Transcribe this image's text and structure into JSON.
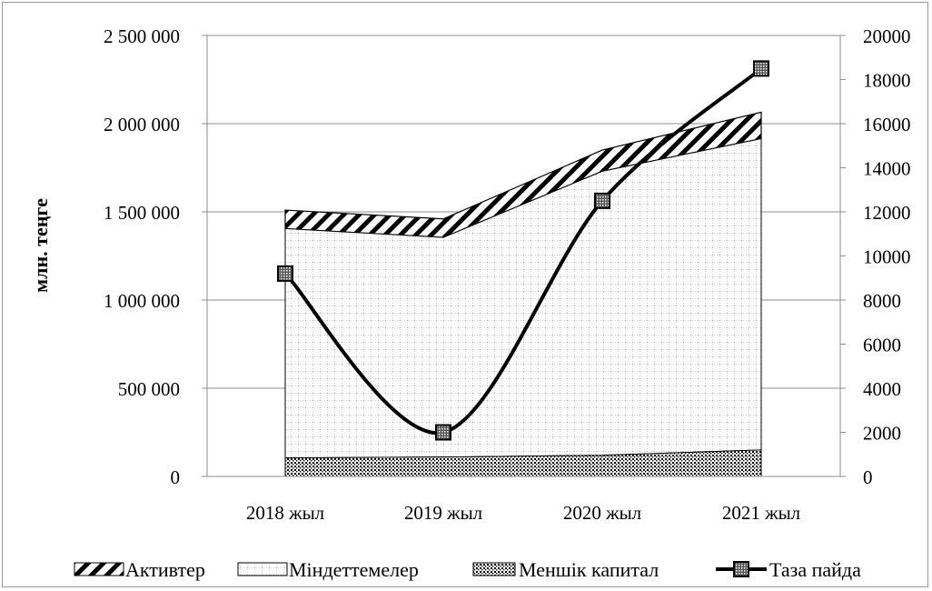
{
  "chart_data": {
    "type": "area",
    "categories": [
      "2018 жыл",
      "2019 жыл",
      "2020 жыл",
      "2021 жыл"
    ],
    "series": [
      {
        "name": "Активтер",
        "kind": "stacked-area",
        "axis": "left",
        "values": [
          1510000,
          1460000,
          1850000,
          2065000
        ]
      },
      {
        "name": "Міндеттемелер",
        "kind": "stacked-area",
        "axis": "left",
        "values": [
          1405000,
          1355000,
          1730000,
          1915000
        ]
      },
      {
        "name": "Меншік капитал",
        "kind": "stacked-area",
        "axis": "left",
        "values": [
          105000,
          110000,
          120000,
          150000
        ]
      },
      {
        "name": "Таза пайда",
        "kind": "line",
        "axis": "right",
        "values": [
          9200,
          2000,
          12500,
          18500
        ]
      }
    ],
    "ylabel": "млн. теңге",
    "ylim": [
      0,
      2500000
    ],
    "y2lim": [
      0,
      20000
    ],
    "yticks": [
      "0",
      "500 000",
      "1 000 000",
      "1 500 000",
      "2 000 000",
      "2 500 000"
    ],
    "y2ticks": [
      "0",
      "2000",
      "4000",
      "6000",
      "8000",
      "10000",
      "12000",
      "14000",
      "16000",
      "18000",
      "20000"
    ],
    "grid": true,
    "legend_position": "bottom"
  },
  "colors": {
    "frame": "#9a9a9a",
    "grid": "#8c8c8c",
    "ink": "#000000",
    "fill": "#ffffff"
  }
}
